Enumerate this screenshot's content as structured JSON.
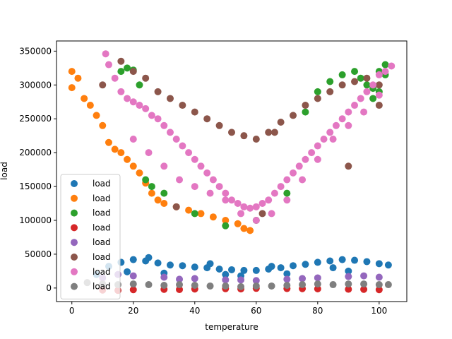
{
  "chart_data": {
    "type": "scatter",
    "title": "",
    "xlabel": "temperature",
    "ylabel": "load",
    "xlim": [
      -5,
      109
    ],
    "ylim": [
      -20000,
      365000
    ],
    "xticks": [
      0,
      20,
      40,
      60,
      80,
      100
    ],
    "yticks": [
      0,
      50000,
      100000,
      150000,
      200000,
      250000,
      300000,
      350000
    ],
    "grid": false,
    "legend_position": "lower-left",
    "series": [
      {
        "name": "load",
        "color": "#1f77b4",
        "x": [
          8,
          12,
          16,
          20,
          24,
          28,
          32,
          36,
          40,
          44,
          48,
          52,
          56,
          60,
          64,
          68,
          72,
          76,
          80,
          84,
          88,
          92,
          96,
          100,
          103,
          18,
          30,
          50,
          70,
          90,
          55,
          85,
          25,
          45,
          65
        ],
        "y": [
          20000,
          32000,
          38000,
          42000,
          40000,
          37000,
          34000,
          33000,
          31000,
          30000,
          28000,
          27000,
          26000,
          26000,
          28000,
          30000,
          33000,
          35000,
          38000,
          40000,
          42000,
          41000,
          39000,
          36000,
          34000,
          24000,
          22000,
          20000,
          21000,
          25000,
          18000,
          30000,
          45000,
          36000,
          32000
        ]
      },
      {
        "name": "load",
        "color": "#ff7f0e",
        "x": [
          0,
          0,
          2,
          4,
          6,
          8,
          10,
          12,
          14,
          16,
          18,
          20,
          22,
          24,
          26,
          28,
          30,
          34,
          38,
          42,
          46,
          50,
          54,
          56,
          58
        ],
        "y": [
          320000,
          296000,
          310000,
          280000,
          270000,
          255000,
          240000,
          215000,
          205000,
          200000,
          190000,
          180000,
          170000,
          155000,
          140000,
          130000,
          125000,
          120000,
          115000,
          110000,
          105000,
          100000,
          95000,
          88000,
          85000
        ]
      },
      {
        "name": "load",
        "color": "#2ca02c",
        "x": [
          16,
          18,
          20,
          22,
          24,
          26,
          30,
          40,
          50,
          60,
          70,
          76,
          80,
          84,
          88,
          92,
          94,
          96,
          98,
          100,
          102,
          102,
          100,
          98
        ],
        "y": [
          320000,
          325000,
          322000,
          300000,
          160000,
          150000,
          140000,
          110000,
          92000,
          100000,
          140000,
          260000,
          290000,
          305000,
          315000,
          320000,
          310000,
          300000,
          295000,
          320000,
          330000,
          315000,
          290000,
          280000
        ]
      },
      {
        "name": "load",
        "color": "#d62728",
        "x": [
          10,
          20,
          30,
          40,
          50,
          60,
          70,
          80,
          90,
          100,
          15,
          35,
          55,
          75,
          95
        ],
        "y": [
          -3000,
          -2500,
          -2000,
          -1500,
          -1000,
          -500,
          -800,
          -1200,
          -1800,
          -2500,
          -3500,
          -2200,
          -1300,
          -900,
          -2000
        ]
      },
      {
        "name": "load",
        "color": "#9467bd",
        "x": [
          10,
          20,
          30,
          40,
          50,
          60,
          70,
          80,
          90,
          100,
          15,
          35,
          55,
          75,
          95
        ],
        "y": [
          15000,
          18000,
          16000,
          14000,
          12000,
          11000,
          13000,
          15000,
          17000,
          16000,
          20000,
          13000,
          12000,
          14000,
          18000
        ]
      },
      {
        "name": "load",
        "color": "#8c564b",
        "x": [
          10,
          16,
          20,
          24,
          28,
          32,
          36,
          40,
          44,
          48,
          52,
          56,
          60,
          64,
          68,
          72,
          76,
          80,
          84,
          88,
          92,
          96,
          100,
          34,
          62,
          66,
          90,
          100
        ],
        "y": [
          300000,
          335000,
          320000,
          310000,
          290000,
          280000,
          270000,
          260000,
          250000,
          240000,
          230000,
          225000,
          220000,
          230000,
          245000,
          255000,
          270000,
          280000,
          290000,
          300000,
          305000,
          310000,
          300000,
          120000,
          110000,
          230000,
          180000,
          270000
        ]
      },
      {
        "name": "load",
        "color": "#e377c2",
        "x": [
          11,
          12,
          14,
          16,
          18,
          20,
          22,
          24,
          26,
          28,
          30,
          32,
          34,
          36,
          38,
          40,
          42,
          44,
          46,
          48,
          50,
          52,
          54,
          56,
          58,
          60,
          62,
          64,
          66,
          68,
          70,
          72,
          74,
          76,
          78,
          80,
          82,
          84,
          86,
          88,
          90,
          92,
          94,
          96,
          98,
          100,
          102,
          104,
          20,
          25,
          30,
          35,
          40,
          45,
          50,
          55,
          60,
          65,
          70,
          75,
          80,
          85,
          90,
          95,
          100
        ],
        "y": [
          346000,
          330000,
          310000,
          290000,
          280000,
          275000,
          270000,
          265000,
          255000,
          250000,
          240000,
          230000,
          220000,
          210000,
          200000,
          190000,
          180000,
          170000,
          160000,
          150000,
          140000,
          130000,
          125000,
          120000,
          118000,
          120000,
          125000,
          130000,
          140000,
          150000,
          160000,
          170000,
          180000,
          190000,
          200000,
          210000,
          220000,
          230000,
          240000,
          250000,
          260000,
          270000,
          280000,
          290000,
          300000,
          315000,
          320000,
          328000,
          220000,
          200000,
          180000,
          160000,
          150000,
          140000,
          130000,
          110000,
          100000,
          110000,
          130000,
          160000,
          190000,
          220000,
          240000,
          260000,
          285000
        ]
      },
      {
        "name": "load",
        "color": "#7f7f7f",
        "x": [
          5,
          10,
          15,
          20,
          25,
          30,
          35,
          40,
          45,
          50,
          55,
          60,
          65,
          70,
          75,
          80,
          85,
          90,
          95,
          100,
          103
        ],
        "y": [
          8000,
          6000,
          5000,
          6000,
          5000,
          4000,
          5000,
          4000,
          3000,
          3000,
          2000,
          3000,
          3000,
          4000,
          5000,
          6000,
          5000,
          6000,
          6000,
          5000,
          5000
        ]
      }
    ]
  }
}
